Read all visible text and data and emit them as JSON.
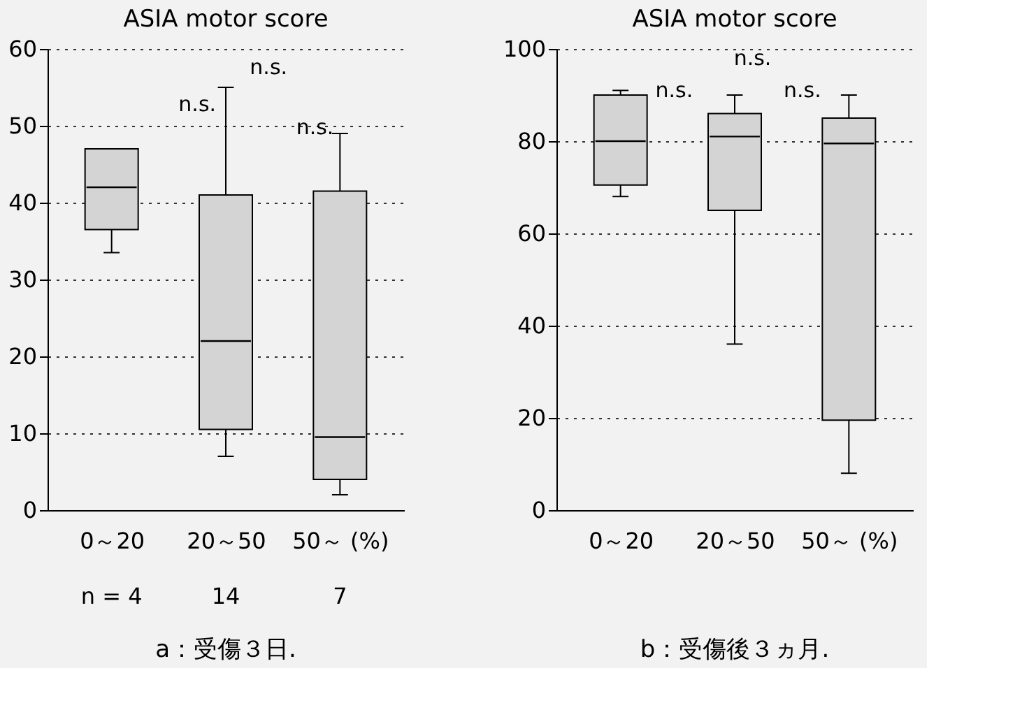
{
  "chart_data": [
    {
      "type": "box",
      "title": "ASIA motor score",
      "categories": [
        "0～20",
        "20～50",
        "50～ (%)"
      ],
      "color": "#d4d4d4",
      "boxes": [
        {
          "low": 33.5,
          "q1": 36.5,
          "median": 42,
          "q3": 47,
          "high": 47
        },
        {
          "low": 7,
          "q1": 10.5,
          "median": 22,
          "q3": 41,
          "high": 55
        },
        {
          "low": 2,
          "q1": 4,
          "median": 9.5,
          "q3": 41.5,
          "high": 49
        }
      ],
      "ylim": [
        0,
        60
      ],
      "yticks": [
        0,
        10,
        20,
        30,
        40,
        50,
        60
      ],
      "grid": "y",
      "annotations": [
        "n.s.",
        "n.s.",
        "n.s.",
        "n = 4",
        "14",
        "7",
        "a：受傷３日."
      ]
    },
    {
      "type": "box",
      "title": "ASIA motor score",
      "categories": [
        "0～20",
        "20～50",
        "50～ (%)"
      ],
      "color": "#d4d4d4",
      "boxes": [
        {
          "low": 68,
          "q1": 70.5,
          "median": 80,
          "q3": 90,
          "high": 91
        },
        {
          "low": 36,
          "q1": 65,
          "median": 81,
          "q3": 86,
          "high": 90
        },
        {
          "low": 8,
          "q1": 19.5,
          "median": 79.5,
          "q3": 85,
          "high": 90
        }
      ],
      "ylim": [
        0,
        100
      ],
      "yticks": [
        0,
        20,
        40,
        60,
        80,
        100
      ],
      "grid": "y",
      "annotations": [
        "n.s.",
        "n.s.",
        "n.s.",
        "b：受傷後３ヵ月."
      ]
    }
  ]
}
